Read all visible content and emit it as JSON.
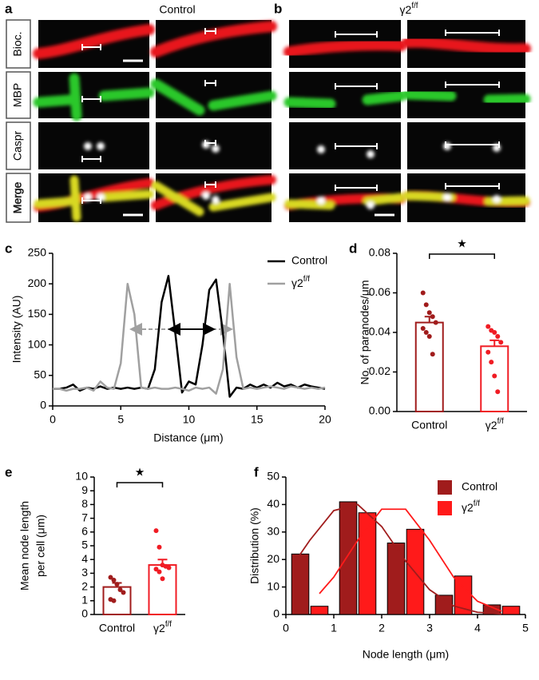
{
  "panel_a": {
    "label": "a",
    "title": "Control"
  },
  "panel_b": {
    "label": "b",
    "title": {
      "text": "γ2",
      "sup": "f/f"
    }
  },
  "channels": [
    "Bioc.",
    "MBP",
    "Caspr",
    "Merge"
  ],
  "chart_data": [
    {
      "type": "line",
      "label": "c",
      "xlabel": "Distance (μm)",
      "ylabel": "Intensity (AU)",
      "x": [
        0,
        0.5,
        1,
        1.5,
        2,
        2.5,
        3,
        3.5,
        4,
        4.5,
        5,
        5.5,
        6,
        6.5,
        7,
        7.5,
        8,
        8.5,
        9,
        9.5,
        10,
        10.5,
        11,
        11.5,
        12,
        12.5,
        13,
        13.5,
        14,
        14.5,
        15,
        15.5,
        16,
        16.5,
        17,
        17.5,
        18,
        18.5,
        19,
        19.5,
        20
      ],
      "series": [
        {
          "name": "Control",
          "color": "#000000",
          "values": [
            28,
            28,
            30,
            35,
            25,
            30,
            28,
            32,
            28,
            30,
            28,
            30,
            28,
            30,
            28,
            60,
            170,
            213,
            120,
            22,
            40,
            35,
            100,
            190,
            207,
            120,
            15,
            30,
            28,
            35,
            30,
            35,
            30,
            38,
            32,
            35,
            30,
            35,
            32,
            30,
            28
          ]
        },
        {
          "name": {
            "text": "γ2",
            "sup": "f/f"
          },
          "color": "#a0a0a0",
          "values": [
            28,
            28,
            25,
            28,
            28,
            30,
            25,
            40,
            30,
            28,
            70,
            200,
            150,
            30,
            28,
            30,
            28,
            28,
            30,
            28,
            25,
            30,
            28,
            30,
            20,
            60,
            200,
            80,
            28,
            30,
            28,
            30,
            32,
            30,
            28,
            32,
            30,
            28,
            30,
            28,
            30
          ]
        }
      ],
      "xlim": [
        0,
        20
      ],
      "ylim": [
        0,
        250
      ],
      "xticks": [
        0,
        5,
        10,
        15,
        20
      ],
      "yticks": [
        0,
        50,
        100,
        150,
        200,
        250
      ],
      "legend": "upper right"
    },
    {
      "type": "bar",
      "label": "d",
      "ylabel": "No. of paranodes/μm",
      "categories": [
        "Control",
        {
          "text": "γ2",
          "sup": "f/f"
        }
      ],
      "colors": [
        "#a01c1c",
        "#f01c24"
      ],
      "values": [
        0.045,
        0.033
      ],
      "errors": [
        0.003,
        0.003
      ],
      "points": [
        [
          0.06,
          0.054,
          0.05,
          0.048,
          0.045,
          0.042,
          0.04,
          0.038,
          0.029
        ],
        [
          0.043,
          0.041,
          0.04,
          0.038,
          0.035,
          0.03,
          0.025,
          0.018,
          0.01
        ]
      ],
      "ylim": [
        0,
        0.08
      ],
      "yticks": [
        {
          "value": 0,
          "label": "0.00"
        },
        {
          "value": 0.02,
          "label": "0.02"
        },
        {
          "value": 0.04,
          "label": "0.04"
        },
        {
          "value": 0.06,
          "label": "0.06"
        },
        {
          "value": 0.08,
          "label": "0.08"
        }
      ],
      "significance": "★"
    },
    {
      "type": "bar",
      "label": "e",
      "ylabel": [
        "Mean  node length",
        "per cell (μm)"
      ],
      "categories": [
        "Control",
        {
          "text": "γ2",
          "sup": "f/f"
        }
      ],
      "colors": [
        "#a01c1c",
        "#f01c24"
      ],
      "values": [
        2.0,
        3.6
      ],
      "errors": [
        0.3,
        0.4
      ],
      "points": [
        [
          2.7,
          2.5,
          2.2,
          1.8,
          1.6,
          1.1,
          1.0
        ],
        [
          6.1,
          4.9,
          3.6,
          3.5,
          3.4,
          3.3,
          3.1,
          2.6
        ]
      ],
      "ylim": [
        0,
        10
      ],
      "yticks": [
        0,
        1,
        2,
        3,
        4,
        5,
        6,
        7,
        8,
        9,
        10
      ],
      "significance": "★"
    },
    {
      "type": "bar",
      "label": "f",
      "xlabel": "Node length (μm)",
      "ylabel": "Distribution (%)",
      "series": [
        {
          "name": "Control",
          "color": "#a01c1c",
          "x": [
            0.3,
            1.3,
            2.3,
            3.3,
            4.3
          ],
          "values": [
            22,
            41,
            26,
            7,
            3.5
          ],
          "fit": {
            "x": [
              0.2,
              0.5,
              1,
              1.5,
              2,
              2.5,
              3,
              3.5,
              4,
              4.5
            ],
            "values": [
              19.4,
              27,
              37.8,
              40,
              32,
              19.4,
              9,
              3.1,
              0.8,
              0.2
            ]
          }
        },
        {
          "name": {
            "text": "γ2",
            "sup": "f/f"
          },
          "color": "#ff1a1a",
          "x": [
            0.7,
            1.7,
            2.7,
            3.7,
            4.7
          ],
          "values": [
            3,
            37,
            31,
            14,
            3
          ],
          "fit": {
            "x": [
              0.7,
              1,
              1.5,
              2,
              2.5,
              3,
              3.5,
              4,
              4.5
            ],
            "values": [
              7.6,
              13.6,
              27,
              38.3,
              38.3,
              27,
              13.6,
              4.8,
              1.2
            ]
          }
        }
      ],
      "xlim": [
        0,
        5
      ],
      "ylim": [
        0,
        50
      ],
      "xticks": [
        0,
        1,
        2,
        3,
        4,
        5
      ],
      "yticks": [
        0,
        10,
        20,
        30,
        40,
        50
      ],
      "legend": "upper right"
    }
  ]
}
